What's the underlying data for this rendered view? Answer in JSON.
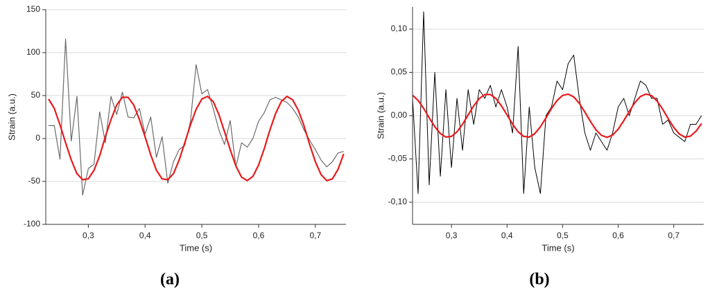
{
  "chart_data": [
    {
      "type": "line",
      "caption": "(a)",
      "xlabel": "Time (s)",
      "ylabel": "Strain (a.u.)",
      "x": [
        0.23,
        0.24,
        0.25,
        0.26,
        0.27,
        0.28,
        0.29,
        0.3,
        0.31,
        0.32,
        0.33,
        0.34,
        0.35,
        0.36,
        0.37,
        0.38,
        0.39,
        0.4,
        0.41,
        0.42,
        0.43,
        0.44,
        0.45,
        0.46,
        0.47,
        0.48,
        0.49,
        0.5,
        0.51,
        0.52,
        0.53,
        0.54,
        0.55,
        0.56,
        0.57,
        0.58,
        0.59,
        0.6,
        0.61,
        0.62,
        0.63,
        0.64,
        0.65,
        0.66,
        0.67,
        0.68,
        0.69,
        0.7,
        0.71,
        0.72,
        0.73,
        0.74,
        0.75
      ],
      "series": [
        {
          "color": "#6a6a6a",
          "width": 1.2,
          "values": [
            15,
            15,
            -24,
            116,
            -3,
            49,
            -66,
            -35,
            -30,
            31,
            -5,
            49,
            28,
            54,
            25,
            24,
            35,
            5,
            25,
            -22,
            2,
            -52,
            -27,
            -13,
            -8,
            20,
            86,
            52,
            57,
            35,
            10,
            -7,
            21,
            -33,
            -5,
            -10,
            0,
            20,
            30,
            45,
            48,
            45,
            42,
            35,
            25,
            10,
            -2,
            -13,
            -25,
            -33,
            -27,
            -17,
            -15
          ]
        },
        {
          "color": "#e8191b",
          "width": 2.2,
          "values": [
            46,
            35,
            16,
            -5,
            -25,
            -41,
            -48,
            -47,
            -37,
            -20,
            2,
            22,
            39,
            48,
            48,
            39,
            22,
            2,
            -19,
            -37,
            -47,
            -48,
            -41,
            -25,
            -5,
            16,
            34,
            46,
            49,
            43,
            28,
            8,
            -13,
            -32,
            -45,
            -49,
            -44,
            -31,
            -12,
            10,
            29,
            43,
            49,
            45,
            33,
            15,
            -7,
            -27,
            -42,
            -49,
            -47,
            -36,
            -18
          ]
        }
      ],
      "xlim": [
        0.225,
        0.754
      ],
      "xticks": [
        {
          "value": 0.3,
          "label": "0,3"
        },
        {
          "value": 0.4,
          "label": "0,4"
        },
        {
          "value": 0.5,
          "label": "0,5"
        },
        {
          "value": 0.6,
          "label": "0,6"
        },
        {
          "value": 0.7,
          "label": "0,7"
        }
      ],
      "ylim": [
        -100,
        150
      ],
      "yticks": [
        -100,
        -50,
        0,
        50,
        100,
        150
      ],
      "grid": true
    },
    {
      "type": "line",
      "caption": "(b)",
      "xlabel": "Time (s)",
      "ylabel": "Strain (a.u.)",
      "x": [
        0.23,
        0.24,
        0.25,
        0.26,
        0.27,
        0.28,
        0.29,
        0.3,
        0.31,
        0.32,
        0.33,
        0.34,
        0.35,
        0.36,
        0.37,
        0.38,
        0.39,
        0.4,
        0.41,
        0.42,
        0.43,
        0.44,
        0.45,
        0.46,
        0.47,
        0.48,
        0.49,
        0.5,
        0.51,
        0.52,
        0.53,
        0.54,
        0.55,
        0.56,
        0.57,
        0.58,
        0.59,
        0.6,
        0.61,
        0.62,
        0.63,
        0.64,
        0.65,
        0.66,
        0.67,
        0.68,
        0.69,
        0.7,
        0.71,
        0.72,
        0.73,
        0.74,
        0.75
      ],
      "series": [
        {
          "color": "#000000",
          "width": 1,
          "values": [
            0.02,
            -0.09,
            0.12,
            -0.08,
            0.05,
            -0.07,
            0.03,
            -0.06,
            0.02,
            -0.04,
            0.03,
            -0.01,
            0.03,
            0.02,
            0.035,
            0.01,
            0.03,
            0.01,
            -0.02,
            0.08,
            -0.09,
            0.01,
            -0.06,
            -0.09,
            0.0,
            0.01,
            0.04,
            0.03,
            0.06,
            0.07,
            0.02,
            -0.02,
            -0.04,
            -0.02,
            -0.03,
            -0.04,
            -0.02,
            0.01,
            0.02,
            0.0,
            0.02,
            0.04,
            0.035,
            0.02,
            0.02,
            -0.01,
            -0.005,
            -0.02,
            -0.025,
            -0.03,
            -0.01,
            -0.01,
            0.0
          ]
        },
        {
          "color": "#e8191b",
          "width": 2.2,
          "values": [
            0.0235,
            0.0176,
            0.0084,
            -0.0025,
            -0.0128,
            -0.0207,
            -0.0247,
            -0.024,
            -0.0187,
            -0.0099,
            0.0008,
            0.0114,
            0.0197,
            0.0244,
            0.0244,
            0.0198,
            0.0114,
            0.0009,
            -0.0098,
            -0.0187,
            -0.024,
            -0.0247,
            -0.0208,
            -0.0129,
            -0.0026,
            0.0083,
            0.0175,
            0.0234,
            0.0249,
            0.0217,
            0.0143,
            0.0042,
            -0.0066,
            -0.0163,
            -0.0228,
            -0.025,
            -0.0225,
            -0.0156,
            -0.0059,
            0.005,
            0.015,
            0.0221,
            0.025,
            0.0231,
            0.0169,
            0.0075,
            -0.0034,
            -0.0136,
            -0.0212,
            -0.0248,
            -0.0237,
            -0.0181,
            -0.0091
          ]
        }
      ],
      "xlim": [
        0.23,
        0.754
      ],
      "xticks": [
        {
          "value": 0.3,
          "label": "0,3"
        },
        {
          "value": 0.4,
          "label": "0,4"
        },
        {
          "value": 0.5,
          "label": "0,5"
        },
        {
          "value": 0.6,
          "label": "0,6"
        },
        {
          "value": 0.7,
          "label": "0,7"
        }
      ],
      "ylim": [
        -0.1256,
        0.1256
      ],
      "yticks": [
        {
          "value": -0.1,
          "label": "-0,10"
        },
        {
          "value": -0.05,
          "label": "-0,05"
        },
        {
          "value": 0,
          "label": "0,00"
        },
        {
          "value": 0.05,
          "label": "0,05"
        },
        {
          "value": 0.1,
          "label": "0,10"
        }
      ],
      "grid": true
    }
  ]
}
